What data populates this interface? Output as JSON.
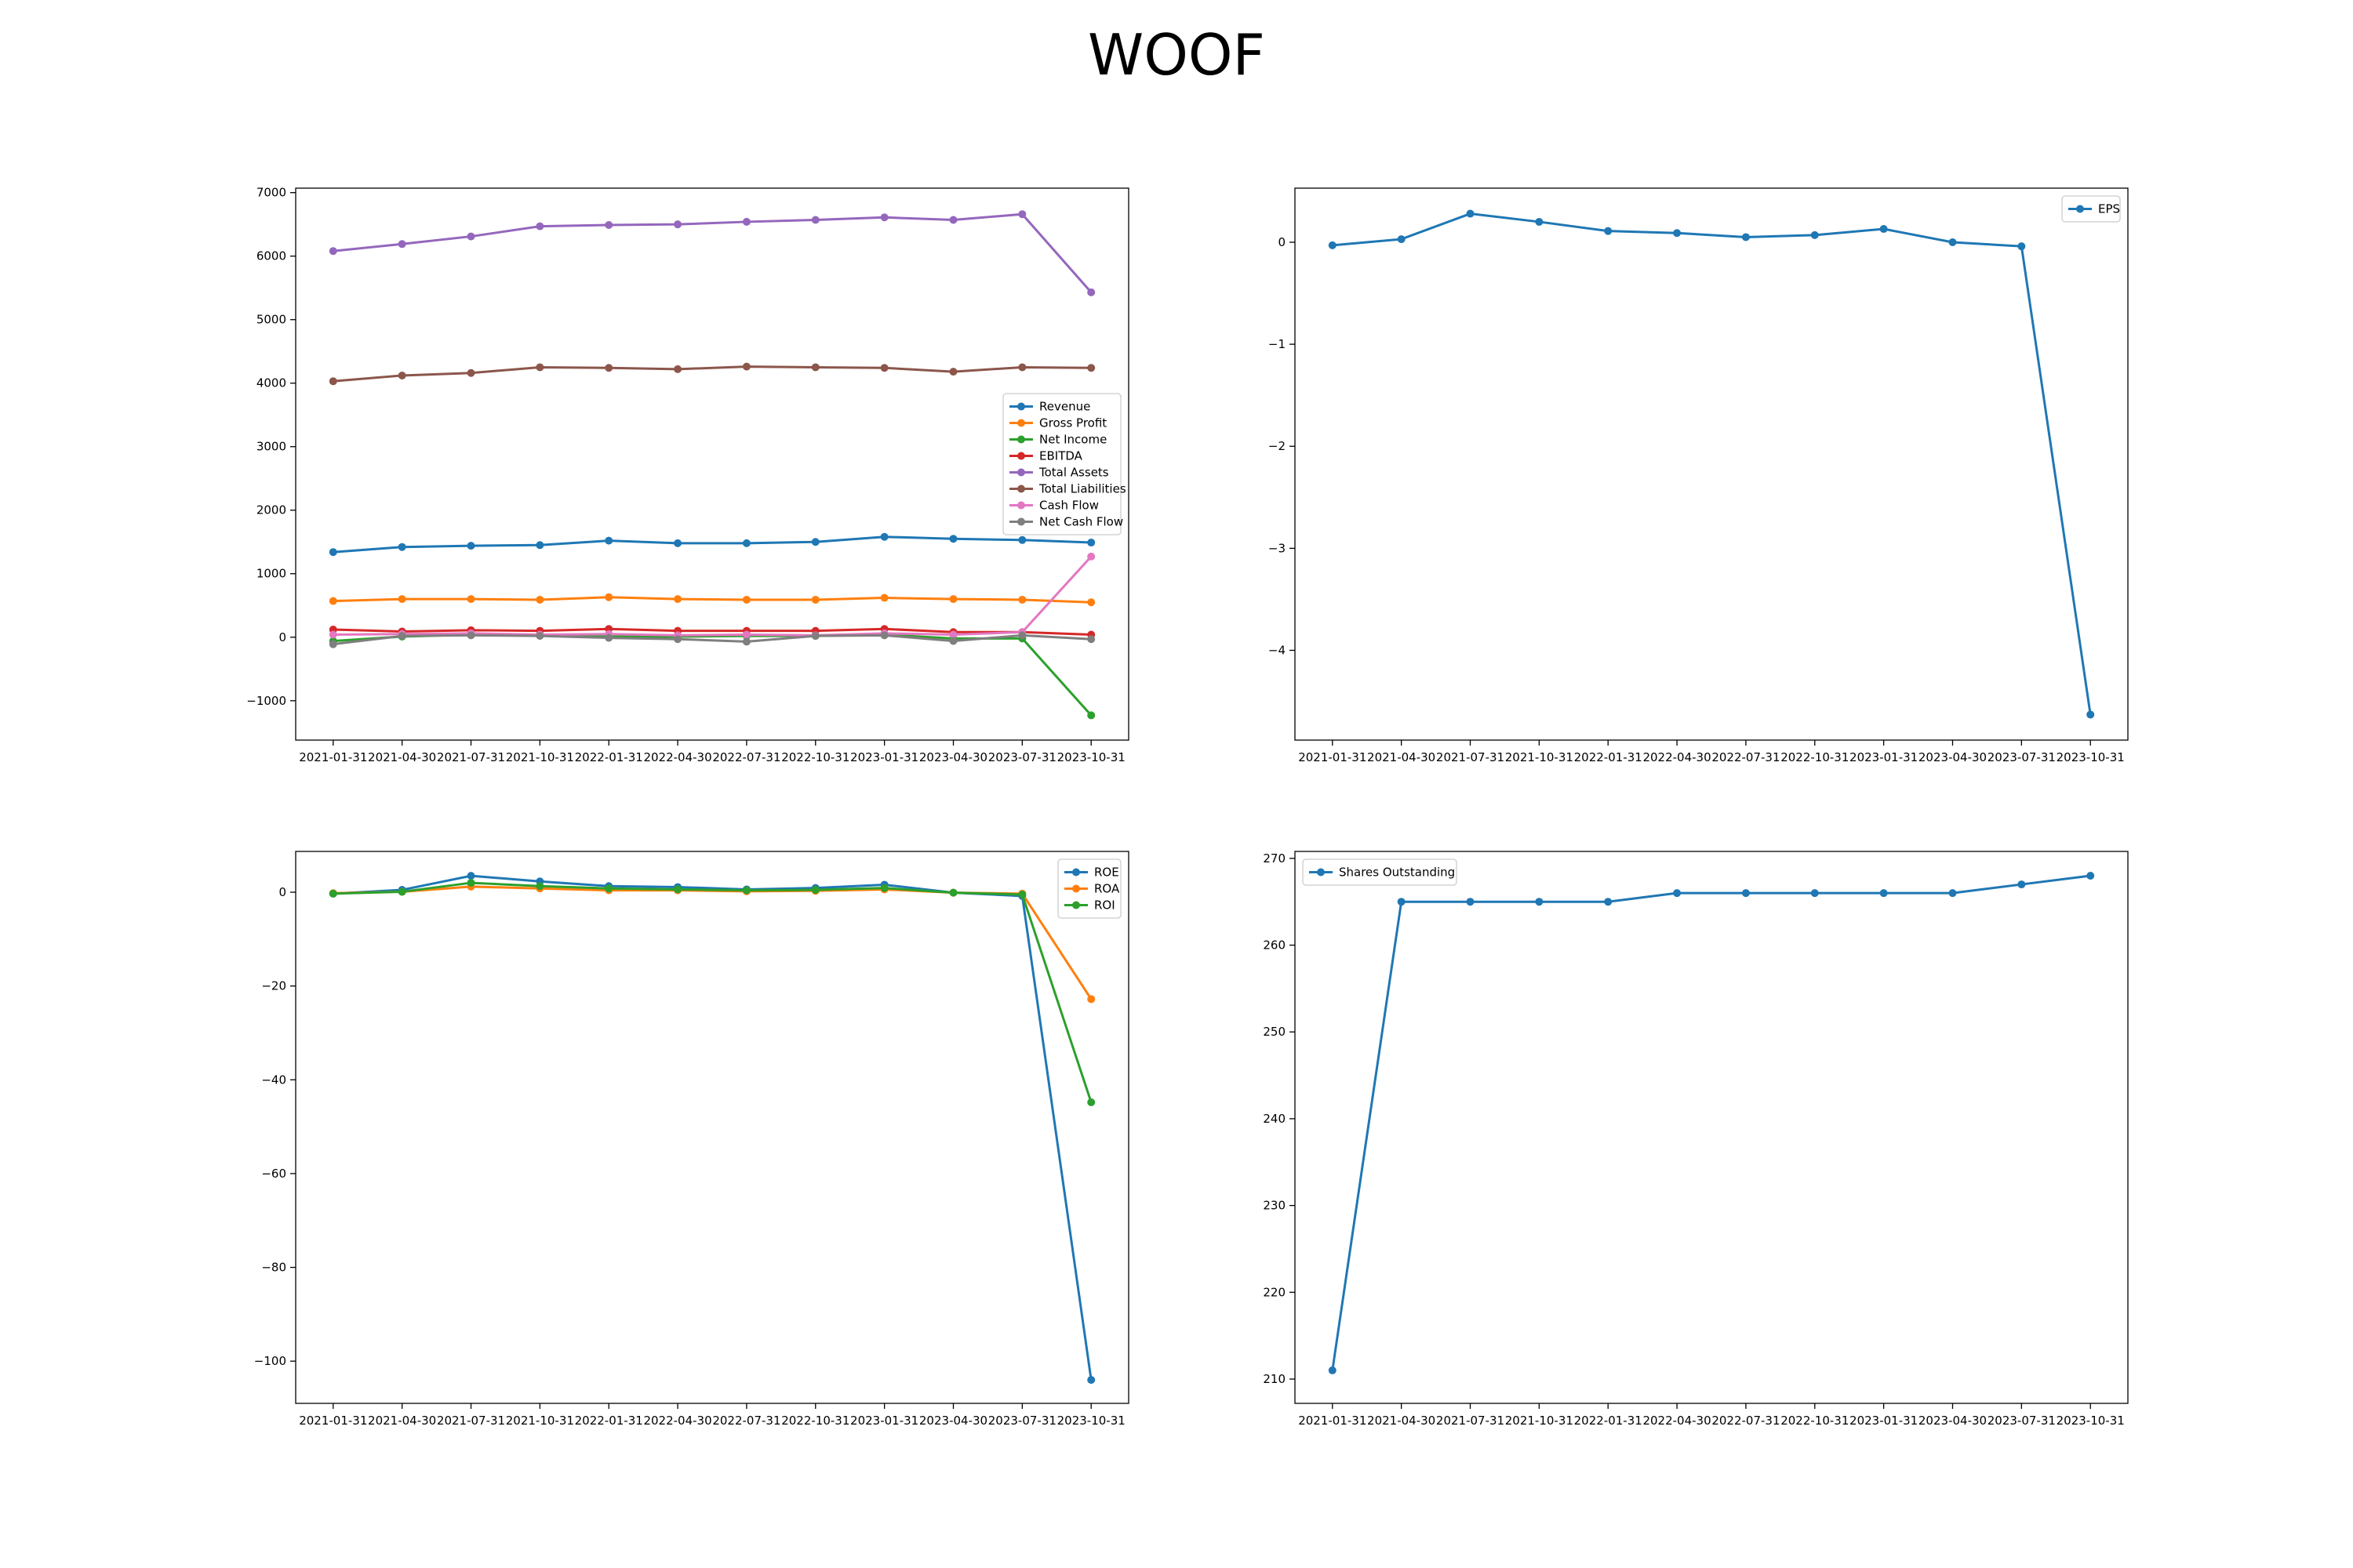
{
  "figure": {
    "title": "WOOF"
  },
  "colors": {
    "blue": "#1f77b4",
    "orange": "#ff7f0e",
    "green": "#2ca02c",
    "red": "#d62728",
    "purple": "#9467bd",
    "brown": "#8c564b",
    "pink": "#e377c2",
    "gray": "#7f7f7f"
  },
  "chart_data": [
    {
      "type": "line",
      "x": [
        "2021-01-31",
        "2021-04-30",
        "2021-07-31",
        "2021-10-31",
        "2022-01-31",
        "2022-04-30",
        "2022-07-31",
        "2022-10-31",
        "2023-01-31",
        "2023-04-30",
        "2023-07-31",
        "2023-10-31"
      ],
      "yticks": [
        -1000,
        0,
        1000,
        2000,
        3000,
        4000,
        5000,
        6000,
        7000
      ],
      "ytick_labels": [
        "−1000",
        "0",
        "1000",
        "2000",
        "3000",
        "4000",
        "5000",
        "6000",
        "7000"
      ],
      "ylim": [
        -1620,
        7070
      ],
      "legend": "right",
      "series": [
        {
          "name": "Revenue",
          "color": "#1f77b4",
          "values": [
            1340,
            1420,
            1440,
            1450,
            1520,
            1480,
            1480,
            1500,
            1580,
            1550,
            1530,
            1490
          ]
        },
        {
          "name": "Gross Profit",
          "color": "#ff7f0e",
          "values": [
            570,
            600,
            600,
            590,
            630,
            600,
            590,
            590,
            620,
            600,
            590,
            550
          ]
        },
        {
          "name": "Net Income",
          "color": "#2ca02c",
          "values": [
            -60,
            10,
            40,
            30,
            10,
            10,
            20,
            20,
            40,
            -20,
            -20,
            -1230
          ]
        },
        {
          "name": "EBITDA",
          "color": "#d62728",
          "values": [
            120,
            90,
            110,
            100,
            130,
            100,
            100,
            100,
            130,
            80,
            80,
            40
          ]
        },
        {
          "name": "Total Assets",
          "color": "#9467bd",
          "values": [
            6080,
            6190,
            6310,
            6470,
            6490,
            6500,
            6540,
            6570,
            6610,
            6570,
            6660,
            5430
          ]
        },
        {
          "name": "Total Liabilities",
          "color": "#8c564b",
          "values": [
            4030,
            4120,
            4160,
            4250,
            4240,
            4220,
            4260,
            4250,
            4240,
            4180,
            4250,
            4240
          ]
        },
        {
          "name": "Cash Flow",
          "color": "#e377c2",
          "values": [
            40,
            50,
            60,
            40,
            50,
            30,
            40,
            30,
            60,
            40,
            80,
            1270
          ]
        },
        {
          "name": "Net Cash Flow",
          "color": "#7f7f7f",
          "values": [
            -110,
            20,
            30,
            20,
            -10,
            -30,
            -70,
            20,
            30,
            -60,
            30,
            -30
          ]
        }
      ]
    },
    {
      "type": "line",
      "x": [
        "2021-01-31",
        "2021-04-30",
        "2021-07-31",
        "2021-10-31",
        "2022-01-31",
        "2022-04-30",
        "2022-07-31",
        "2022-10-31",
        "2023-01-31",
        "2023-04-30",
        "2023-07-31",
        "2023-10-31"
      ],
      "yticks": [
        -4,
        -3,
        -2,
        -1,
        0
      ],
      "ytick_labels": [
        "−4",
        "−3",
        "−2",
        "−1",
        "0"
      ],
      "ylim": [
        -4.88,
        0.53
      ],
      "legend": "top-right",
      "series": [
        {
          "name": "EPS",
          "color": "#1f77b4",
          "values": [
            -0.03,
            0.03,
            0.28,
            0.2,
            0.11,
            0.09,
            0.05,
            0.07,
            0.13,
            0.0,
            -0.04,
            -4.63
          ]
        }
      ]
    },
    {
      "type": "line",
      "x": [
        "2021-01-31",
        "2021-04-30",
        "2021-07-31",
        "2021-10-31",
        "2022-01-31",
        "2022-04-30",
        "2022-07-31",
        "2022-10-31",
        "2023-01-31",
        "2023-04-30",
        "2023-07-31",
        "2023-10-31"
      ],
      "yticks": [
        -100,
        -80,
        -60,
        -40,
        -20,
        0
      ],
      "ytick_labels": [
        "−100",
        "−80",
        "−60",
        "−40",
        "−20",
        "0"
      ],
      "ylim": [
        -109,
        8.7
      ],
      "legend": "top-right",
      "series": [
        {
          "name": "ROE",
          "color": "#1f77b4",
          "values": [
            -0.3,
            0.5,
            3.5,
            2.3,
            1.3,
            1.1,
            0.6,
            0.9,
            1.6,
            -0.1,
            -0.8,
            -104
          ]
        },
        {
          "name": "ROA",
          "color": "#ff7f0e",
          "values": [
            -0.2,
            0.1,
            1.2,
            0.8,
            0.4,
            0.4,
            0.2,
            0.3,
            0.6,
            -0.1,
            -0.3,
            -22.8
          ]
        },
        {
          "name": "ROI",
          "color": "#2ca02c",
          "values": [
            -0.3,
            0.1,
            2.0,
            1.3,
            0.8,
            0.6,
            0.4,
            0.5,
            0.9,
            -0.1,
            -0.5,
            -44.8
          ]
        }
      ]
    },
    {
      "type": "line",
      "x": [
        "2021-01-31",
        "2021-04-30",
        "2021-07-31",
        "2021-10-31",
        "2022-01-31",
        "2022-04-30",
        "2022-07-31",
        "2022-10-31",
        "2023-01-31",
        "2023-04-30",
        "2023-07-31",
        "2023-10-31"
      ],
      "yticks": [
        210,
        220,
        230,
        240,
        250,
        260,
        270
      ],
      "ytick_labels": [
        "210",
        "220",
        "230",
        "240",
        "250",
        "260",
        "270"
      ],
      "ylim": [
        207.2,
        270.8
      ],
      "legend": "top-left",
      "series": [
        {
          "name": "Shares Outstanding",
          "color": "#1f77b4",
          "values": [
            211,
            265,
            265,
            265,
            265,
            266,
            266,
            266,
            266,
            266,
            267,
            268
          ]
        }
      ]
    }
  ]
}
